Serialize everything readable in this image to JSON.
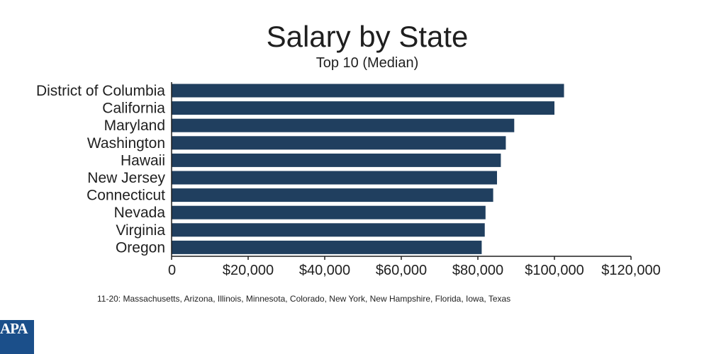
{
  "chart_data": {
    "type": "bar",
    "orientation": "horizontal",
    "title": "Salary by State",
    "subtitle": "Top 10 (Median)",
    "categories": [
      "District of Columbia",
      "California",
      "Maryland",
      "Washington",
      "Hawaii",
      "New Jersey",
      "Connecticut",
      "Nevada",
      "Virginia",
      "Oregon"
    ],
    "values": [
      102500,
      100000,
      89500,
      87300,
      86000,
      85000,
      84000,
      82000,
      81800,
      81000
    ],
    "xlim": [
      0,
      120000
    ],
    "xticks": [
      0,
      20000,
      40000,
      60000,
      80000,
      100000,
      120000
    ],
    "xtick_labels": [
      "0",
      "$20,000",
      "$40,000",
      "$60,000",
      "$80,000",
      "$100,000",
      "$120,000"
    ],
    "bar_color": "#203f5f",
    "grid": false
  },
  "footnote": "11-20: Massachusetts, Arizona, Illinois, Minnesota, Colorado, New York, New Hampshire, Florida, Iowa, Texas",
  "logo": {
    "text": "APA",
    "color": "#1b4f8a"
  }
}
